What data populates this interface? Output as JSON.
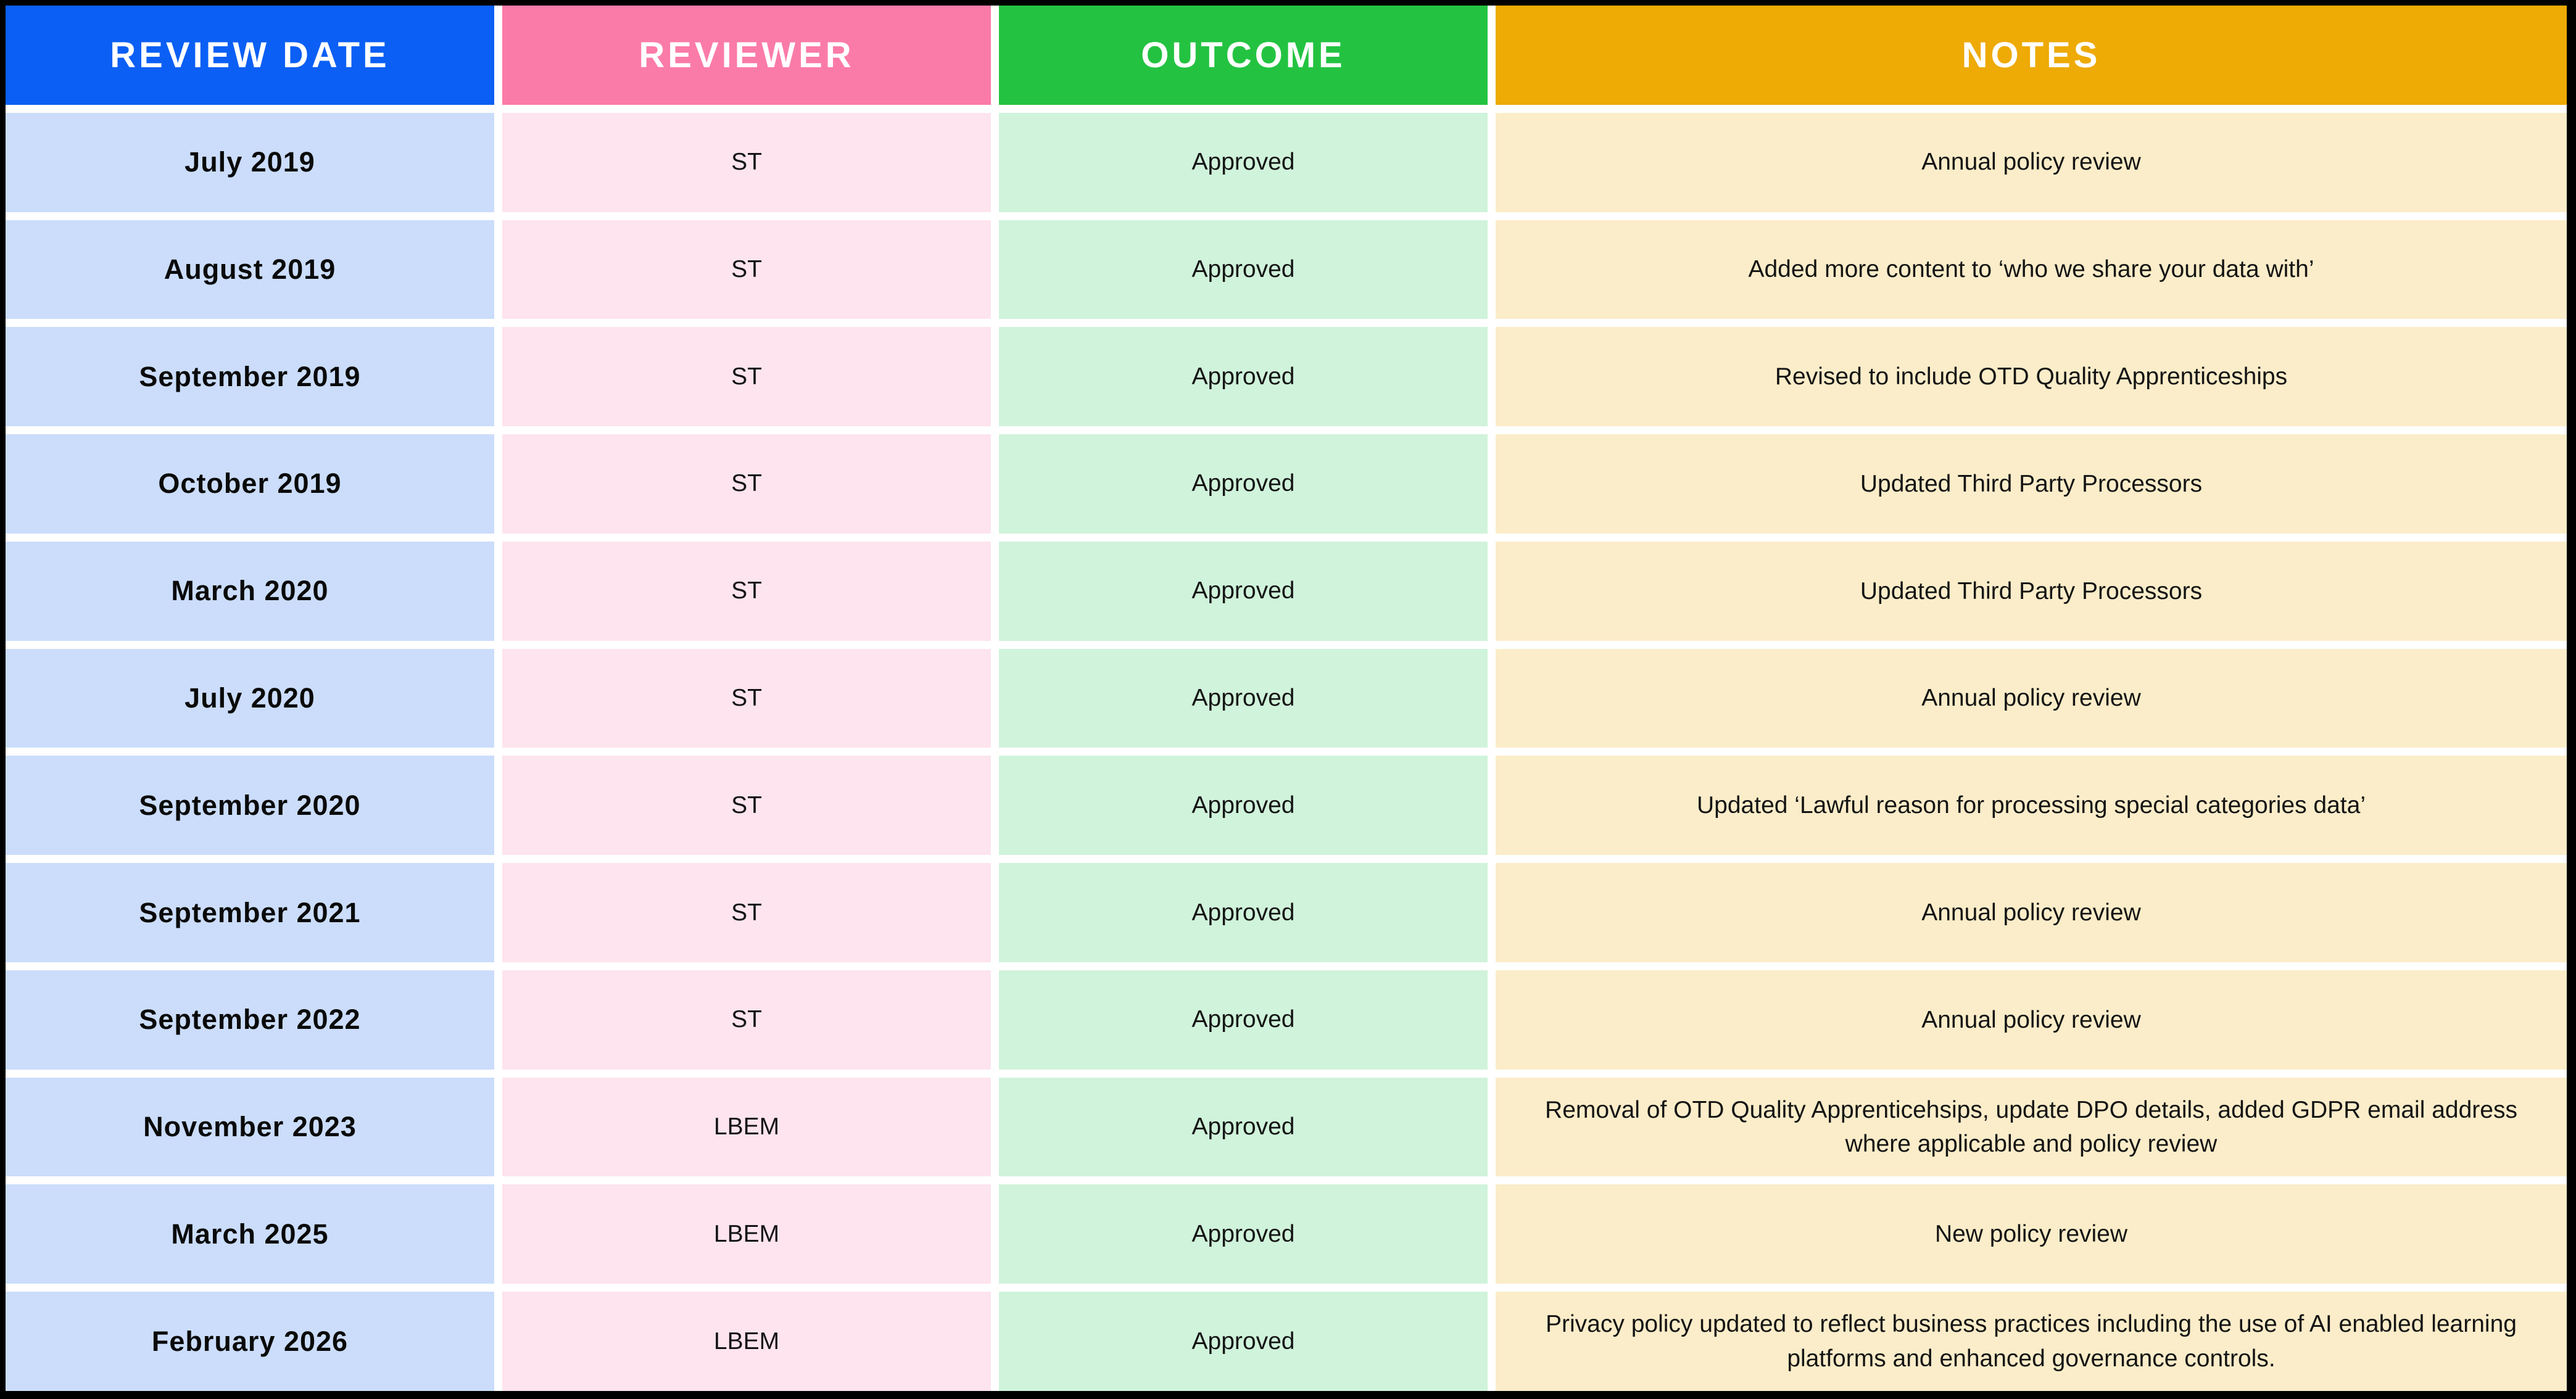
{
  "table": {
    "columns": [
      {
        "key": "review_date",
        "label": "REVIEW DATE",
        "header_bg": "#0b5ff4",
        "cell_bg": "#cbddfb"
      },
      {
        "key": "reviewer",
        "label": "REVIEWER",
        "header_bg": "#fb7ba8",
        "cell_bg": "#fde4ee"
      },
      {
        "key": "outcome",
        "label": "OUTCOME",
        "header_bg": "#23c341",
        "cell_bg": "#d0f3db"
      },
      {
        "key": "notes",
        "label": "NOTES",
        "header_bg": "#eeaa05",
        "cell_bg": "#fbedc9"
      }
    ],
    "rows": [
      {
        "review_date": "July 2019",
        "reviewer": "ST",
        "outcome": "Approved",
        "notes": "Annual policy review"
      },
      {
        "review_date": "August 2019",
        "reviewer": "ST",
        "outcome": "Approved",
        "notes": "Added more content to ‘who we share your data with’"
      },
      {
        "review_date": "September 2019",
        "reviewer": "ST",
        "outcome": "Approved",
        "notes": "Revised to include OTD Quality Apprenticeships"
      },
      {
        "review_date": "October 2019",
        "reviewer": "ST",
        "outcome": "Approved",
        "notes": "Updated Third Party Processors"
      },
      {
        "review_date": "March 2020",
        "reviewer": "ST",
        "outcome": "Approved",
        "notes": "Updated Third Party Processors"
      },
      {
        "review_date": "July 2020",
        "reviewer": "ST",
        "outcome": "Approved",
        "notes": "Annual policy review"
      },
      {
        "review_date": "September 2020",
        "reviewer": "ST",
        "outcome": "Approved",
        "notes": "Updated ‘Lawful reason for processing special categories data’"
      },
      {
        "review_date": "September 2021",
        "reviewer": "ST",
        "outcome": "Approved",
        "notes": "Annual policy review"
      },
      {
        "review_date": "September 2022",
        "reviewer": "ST",
        "outcome": "Approved",
        "notes": "Annual policy review"
      },
      {
        "review_date": "November 2023",
        "reviewer": "LBEM",
        "outcome": "Approved",
        "notes": "Removal of OTD Quality Apprenticehsips, update DPO details, added GDPR email address where applicable and policy review"
      },
      {
        "review_date": "March 2025",
        "reviewer": "LBEM",
        "outcome": "Approved",
        "notes": "New policy review"
      },
      {
        "review_date": "February 2026",
        "reviewer": "LBEM",
        "outcome": "Approved",
        "notes": "Privacy policy updated to reflect business practices including the use of AI enabled learning platforms and enhanced governance controls."
      }
    ],
    "colors": {
      "frame": "#000000",
      "gap": "#ffffff",
      "header_text": "#ffffff",
      "body_text": "#141414"
    }
  }
}
